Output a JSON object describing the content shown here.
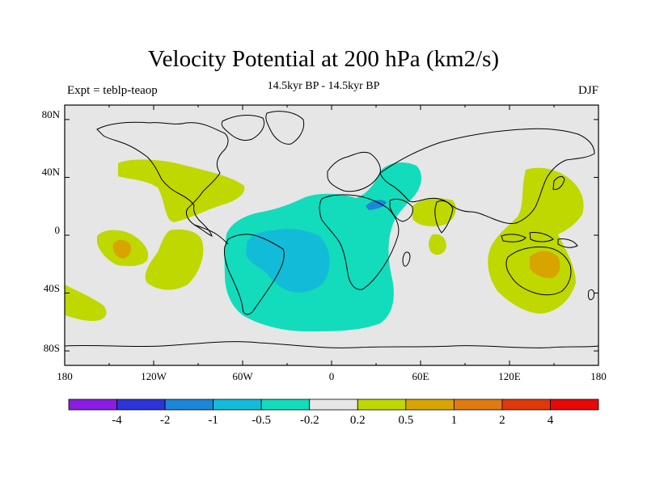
{
  "title": "Velocity Potential at 200 hPa (km2/s)",
  "subtitle": "14.5kyr BP - 14.5kyr BP",
  "left_string": "Expt = teblp-teaop",
  "right_string": "DJF",
  "lat_labels": [
    "80N",
    "40N",
    "0",
    "40S",
    "80S"
  ],
  "lon_labels": [
    "180",
    "120W",
    "60W",
    "0",
    "60E",
    "120E",
    "180"
  ],
  "colorbar": {
    "labels": [
      "-4",
      "-2",
      "-1",
      "-0.5",
      "-0.2",
      "0.2",
      "0.5",
      "1",
      "2",
      "4"
    ],
    "colors": [
      "#8a1ee0",
      "#2d34d8",
      "#1c86d8",
      "#12bcd8",
      "#12dcbc",
      "#e6e6e6",
      "#bed800",
      "#d8a400",
      "#e07a10",
      "#e03808",
      "#e80808"
    ]
  },
  "field_colors": {
    "background": "#e6e6e6",
    "positive_weak": "#bed800",
    "positive_mid": "#d8a400",
    "negative_weak": "#12dcbc",
    "negative_mid": "#12bcd8",
    "negative_strong": "#1c86d8"
  }
}
